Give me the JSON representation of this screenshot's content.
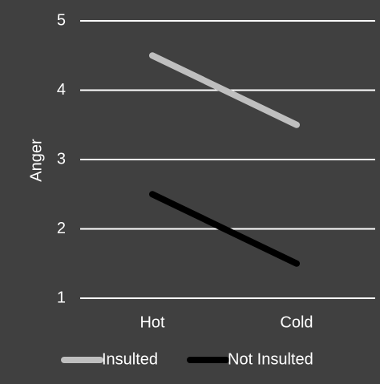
{
  "chart_data": {
    "type": "line",
    "y_label": "Anger",
    "categories": [
      "Hot",
      "Cold"
    ],
    "series": [
      {
        "name": "Insulted",
        "color": "#bfbfbf",
        "values": [
          4.5,
          3.5
        ]
      },
      {
        "name": "Not Insulted",
        "color": "#000000",
        "values": [
          2.5,
          1.5
        ]
      }
    ],
    "ylim": [
      1,
      5
    ],
    "yticks": [
      1,
      2,
      3,
      4,
      5
    ],
    "grid": true,
    "legend": "bottom"
  }
}
